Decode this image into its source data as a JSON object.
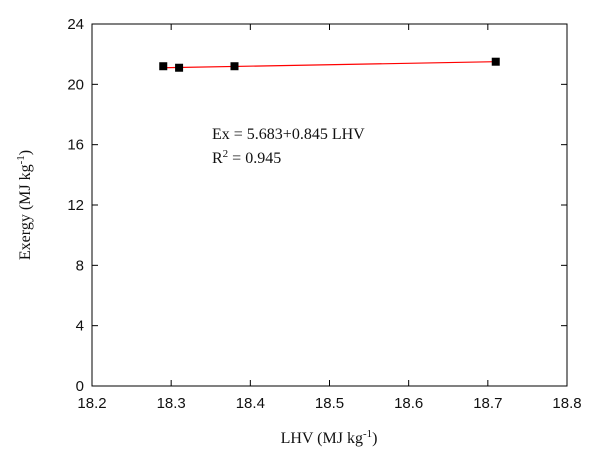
{
  "chart_data": {
    "type": "scatter",
    "title": "",
    "xlabel": "LHV (MJ kg",
    "xlabel_sup": "-1",
    "xlabel_end": ")",
    "ylabel": "Exergy (MJ kg",
    "ylabel_sup": "-1",
    "ylabel_end": ")",
    "xlim": [
      18.2,
      18.8
    ],
    "ylim": [
      0,
      24
    ],
    "xticks": [
      "18.2",
      "18.3",
      "18.4",
      "18.5",
      "18.6",
      "18.7",
      "18.8"
    ],
    "yticks": [
      "0",
      "4",
      "8",
      "12",
      "16",
      "20",
      "24"
    ],
    "grid": false,
    "series": [
      {
        "points": [
          {
            "x": 18.29,
            "y": 21.2
          },
          {
            "x": 18.31,
            "y": 21.1
          },
          {
            "x": 18.38,
            "y": 21.2
          },
          {
            "x": 18.71,
            "y": 21.5
          }
        ],
        "color": "#000000"
      }
    ],
    "fit_line": {
      "x_start": 18.29,
      "x_end": 18.71,
      "intercept": 5.683,
      "slope": 0.845,
      "color": "#ff0000"
    },
    "annotations": {
      "equation": "Ex = 5.683+0.845 LHV",
      "r2_label": "R",
      "r2_sup": "2",
      "r2_value": " = 0.945"
    }
  }
}
